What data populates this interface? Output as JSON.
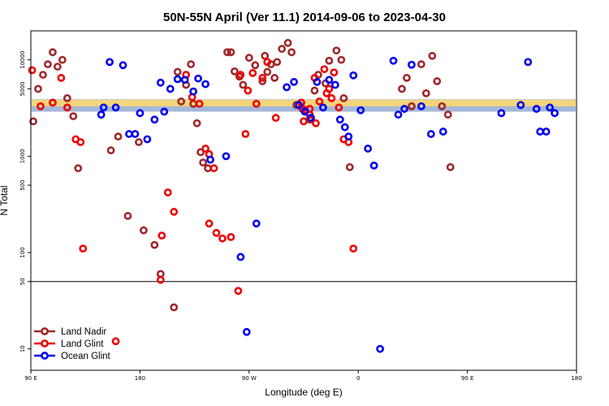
{
  "chart_data": {
    "type": "scatter",
    "title": "50N-55N April (Ver 11.1)   2014-09-06 to 2023-04-30",
    "xlabel": "Longitude (deg E)",
    "ylabel": "N Total",
    "x_ticks": [
      {
        "value": 90,
        "label": "90 E"
      },
      {
        "value": 180,
        "label": "180"
      },
      {
        "value": 270,
        "label": "90 W"
      },
      {
        "value": 360,
        "label": "0"
      },
      {
        "value": 450,
        "label": "90 E"
      },
      {
        "value": 540,
        "label": "180"
      }
    ],
    "y_ticks": [
      {
        "value": 10,
        "label": "10"
      },
      {
        "value": 50,
        "label": "50"
      },
      {
        "value": 100,
        "label": "100"
      },
      {
        "value": 500,
        "label": "500"
      },
      {
        "value": 1000,
        "label": "1000"
      },
      {
        "value": 5000,
        "label": "5000"
      },
      {
        "value": 10000,
        "label": "10000"
      }
    ],
    "xlim": [
      90,
      540
    ],
    "ylim_log": [
      6,
      20000
    ],
    "y_scale": "log",
    "reference_line": 50,
    "band": {
      "ymin": 2900,
      "ymax": 3900,
      "colors": [
        "#a4b8d8",
        "#f5d57a"
      ]
    },
    "legend_position": "bottom-left",
    "series": [
      {
        "name": "Land Nadir",
        "color": "#a0282a",
        "points": [
          [
            92,
            2300
          ],
          [
            96,
            5000
          ],
          [
            100,
            7000
          ],
          [
            104,
            9000
          ],
          [
            108,
            12000
          ],
          [
            112,
            8500
          ],
          [
            116,
            10000
          ],
          [
            120,
            4000
          ],
          [
            125,
            2600
          ],
          [
            129,
            750
          ],
          [
            156,
            1150
          ],
          [
            162,
            1600
          ],
          [
            179,
            1400
          ],
          [
            211,
            7500
          ],
          [
            214,
            3700
          ],
          [
            218,
            5500
          ],
          [
            222,
            9000
          ],
          [
            224,
            3500
          ],
          [
            227,
            2200
          ],
          [
            230,
            1100
          ],
          [
            232,
            860
          ],
          [
            236,
            750
          ],
          [
            252,
            12000
          ],
          [
            255,
            12000
          ],
          [
            258,
            7600
          ],
          [
            262,
            6700
          ],
          [
            265,
            5500
          ],
          [
            270,
            10500
          ],
          [
            275,
            8800
          ],
          [
            281,
            6000
          ],
          [
            283,
            11000
          ],
          [
            285,
            7500
          ],
          [
            288,
            9000
          ],
          [
            291,
            6500
          ],
          [
            293,
            9500
          ],
          [
            297,
            13000
          ],
          [
            302,
            15000
          ],
          [
            305,
            12000
          ],
          [
            309,
            3400
          ],
          [
            320,
            2400
          ],
          [
            324,
            4800
          ],
          [
            327,
            7000
          ],
          [
            333,
            5700
          ],
          [
            336,
            9800
          ],
          [
            342,
            12500
          ],
          [
            346,
            10000
          ],
          [
            348,
            4000
          ],
          [
            353,
            770
          ],
          [
            396,
            5000
          ],
          [
            400,
            6500
          ],
          [
            404,
            3300
          ],
          [
            412,
            9000
          ],
          [
            416,
            4500
          ],
          [
            421,
            11000
          ],
          [
            425,
            6000
          ],
          [
            429,
            3300
          ],
          [
            434,
            2700
          ],
          [
            436,
            770
          ],
          [
            170,
            240
          ],
          [
            183,
            170
          ],
          [
            192,
            120
          ],
          [
            197,
            60
          ],
          [
            208,
            27
          ]
        ]
      },
      {
        "name": "Land Glint",
        "color": "#ee0000",
        "points": [
          [
            91,
            7800
          ],
          [
            98,
            3300
          ],
          [
            108,
            3600
          ],
          [
            115,
            6500
          ],
          [
            120,
            3200
          ],
          [
            127,
            1500
          ],
          [
            131,
            1400
          ],
          [
            133,
            110
          ],
          [
            160,
            12
          ],
          [
            197,
            52
          ],
          [
            198,
            150
          ],
          [
            203,
            420
          ],
          [
            208,
            265
          ],
          [
            218,
            7000
          ],
          [
            223,
            4100
          ],
          [
            229,
            3500
          ],
          [
            234,
            1200
          ],
          [
            237,
            1050
          ],
          [
            241,
            750
          ],
          [
            263,
            7000
          ],
          [
            267,
            1700
          ],
          [
            269,
            4800
          ],
          [
            273,
            7300
          ],
          [
            276,
            3500
          ],
          [
            281,
            6500
          ],
          [
            285,
            9500
          ],
          [
            292,
            2500
          ],
          [
            315,
            2300
          ],
          [
            320,
            3100
          ],
          [
            324,
            6500
          ],
          [
            328,
            3700
          ],
          [
            332,
            8000
          ],
          [
            336,
            5000
          ],
          [
            340,
            7400
          ],
          [
            344,
            3200
          ],
          [
            348,
            1500
          ],
          [
            352,
            1400
          ],
          [
            356,
            110
          ],
          [
            237,
            200
          ],
          [
            243,
            160
          ],
          [
            248,
            140
          ],
          [
            255,
            145
          ],
          [
            261,
            40
          ],
          [
            334,
            4500
          ],
          [
            338,
            4000
          ],
          [
            313,
            3600
          ],
          [
            314,
            3100
          ],
          [
            316,
            3000
          ],
          [
            320,
            2700
          ],
          [
            321,
            2500
          ],
          [
            325,
            2200
          ]
        ]
      },
      {
        "name": "Ocean Glint",
        "color": "#0000ee",
        "points": [
          [
            148,
            2700
          ],
          [
            150,
            3200
          ],
          [
            155,
            9500
          ],
          [
            160,
            3200
          ],
          [
            166,
            8800
          ],
          [
            171,
            1700
          ],
          [
            176,
            1700
          ],
          [
            180,
            2800
          ],
          [
            186,
            1500
          ],
          [
            192,
            2400
          ],
          [
            197,
            5800
          ],
          [
            200,
            2900
          ],
          [
            205,
            5000
          ],
          [
            211,
            6300
          ],
          [
            217,
            6200
          ],
          [
            224,
            4700
          ],
          [
            228,
            6400
          ],
          [
            234,
            5600
          ],
          [
            238,
            920
          ],
          [
            251,
            1000
          ],
          [
            263,
            90
          ],
          [
            268,
            15
          ],
          [
            276,
            200
          ],
          [
            301,
            5200
          ],
          [
            307,
            5900
          ],
          [
            311,
            3400
          ],
          [
            316,
            2900
          ],
          [
            321,
            2500
          ],
          [
            326,
            5900
          ],
          [
            331,
            3200
          ],
          [
            336,
            6200
          ],
          [
            341,
            5500
          ],
          [
            345,
            2400
          ],
          [
            349,
            2000
          ],
          [
            352,
            1600
          ],
          [
            356,
            6900
          ],
          [
            362,
            3000
          ],
          [
            368,
            1200
          ],
          [
            373,
            800
          ],
          [
            378,
            10
          ],
          [
            389,
            9800
          ],
          [
            393,
            2700
          ],
          [
            398,
            3100
          ],
          [
            404,
            8900
          ],
          [
            412,
            3300
          ],
          [
            420,
            1700
          ],
          [
            430,
            1800
          ],
          [
            478,
            2800
          ],
          [
            494,
            3400
          ],
          [
            500,
            9500
          ],
          [
            507,
            3100
          ],
          [
            510,
            1800
          ],
          [
            515,
            1800
          ],
          [
            518,
            3200
          ],
          [
            522,
            2800
          ]
        ]
      }
    ]
  },
  "legend": {
    "items": [
      {
        "label": "Land Nadir",
        "color": "#a0282a"
      },
      {
        "label": "Land Glint",
        "color": "#ee0000"
      },
      {
        "label": "Ocean Glint",
        "color": "#0000ee"
      }
    ]
  }
}
